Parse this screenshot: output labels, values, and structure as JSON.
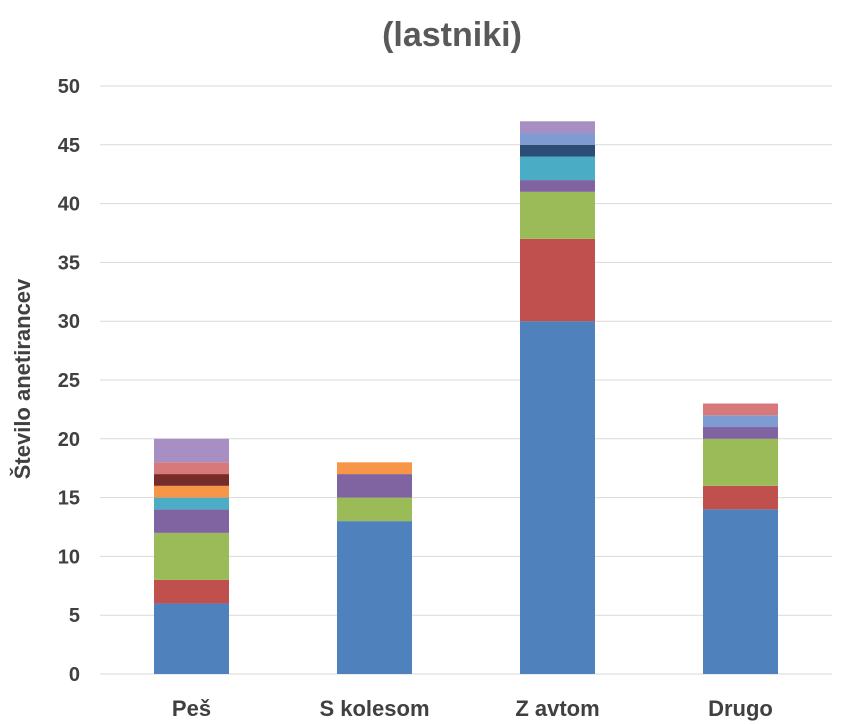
{
  "chart_data": {
    "type": "bar",
    "stacked": true,
    "title": "(lastniki)",
    "ylabel": "Število anetirancev",
    "xlabel": "",
    "ylim": [
      0,
      50
    ],
    "yticks": [
      0,
      5,
      10,
      15,
      20,
      25,
      30,
      35,
      40,
      45,
      50
    ],
    "categories": [
      "Peš",
      "S kolesom",
      "Z avtom",
      "Drugo"
    ],
    "grid": true,
    "legend": "none",
    "series": [
      {
        "color": "#4f81bd",
        "values": [
          6,
          13,
          30,
          14
        ]
      },
      {
        "color": "#c0504d",
        "values": [
          2,
          0,
          7,
          2
        ]
      },
      {
        "color": "#9bbb59",
        "values": [
          4,
          2,
          4,
          4
        ]
      },
      {
        "color": "#8064a2",
        "values": [
          2,
          2,
          1,
          1
        ]
      },
      {
        "color": "#4bacc6",
        "values": [
          1,
          0,
          2,
          0
        ]
      },
      {
        "color": "#f79646",
        "values": [
          1,
          1,
          0,
          0
        ]
      },
      {
        "color": "#2c4d75",
        "values": [
          0,
          0,
          1,
          0
        ]
      },
      {
        "color": "#772c2a",
        "values": [
          1,
          0,
          0,
          0
        ]
      },
      {
        "color": "#7f9bd1",
        "values": [
          0,
          0,
          1,
          1
        ]
      },
      {
        "color": "#d7797a",
        "values": [
          1,
          0,
          0,
          1
        ]
      },
      {
        "color": "#a78fc3",
        "values": [
          2,
          0,
          1,
          0
        ]
      }
    ]
  }
}
